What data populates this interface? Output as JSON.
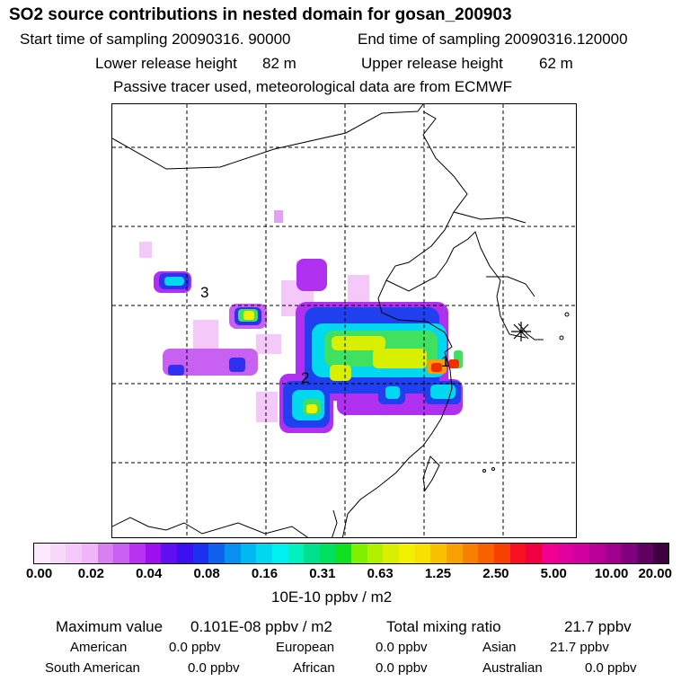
{
  "header": {
    "title": "SO2 source contributions in nested domain for gosan_200903",
    "start_label": "Start time of sampling 20090316. 90000",
    "end_label": "End time of sampling 20090316.120000",
    "lower_label": "Lower release height",
    "lower_value": "82 m",
    "upper_label": "Upper release height",
    "upper_value": "62 m",
    "note": "Passive tracer used, meteorological data are from ECMWF"
  },
  "map": {
    "region_labels": [
      "1",
      "2",
      "3"
    ],
    "receptor_marker": "asterisk-icon",
    "plume_colors": {
      "light_pink": "#f4c8f8",
      "violet": "#b030f0",
      "blue": "#3030f0",
      "cyan": "#00d8f0",
      "green": "#40e060",
      "yellow": "#f0f000",
      "red": "#f03000"
    }
  },
  "colorbar": {
    "colors": [
      "#fce8fc",
      "#f8d8fa",
      "#f4c8f8",
      "#eeb6f6",
      "#d880f2",
      "#c860f2",
      "#b830f0",
      "#9c10f0",
      "#6010f0",
      "#3a10f0",
      "#1c30f0",
      "#1060f0",
      "#0890f0",
      "#00b8f0",
      "#00d8f0",
      "#00f0f0",
      "#00f0c0",
      "#00e090",
      "#00e060",
      "#10e020",
      "#80f000",
      "#b0f000",
      "#d8f000",
      "#f0f000",
      "#f8e000",
      "#f8c000",
      "#f8a000",
      "#f88000",
      "#f86000",
      "#f84000",
      "#f81020",
      "#f00040",
      "#f00090",
      "#e000a0",
      "#d000a0",
      "#b80098",
      "#a00090",
      "#800080",
      "#600060",
      "#400040"
    ],
    "ticks": [
      "0.00",
      "0.02",
      "0.04",
      "0.08",
      "0.16",
      "0.31",
      "0.63",
      "1.25",
      "2.50",
      "5.00",
      "10.00",
      "20.00"
    ],
    "unit": "10E-10 ppbv / m2"
  },
  "stats": {
    "max_label": "Maximum value",
    "max_value": "0.101E-08 ppbv / m2",
    "total_label": "Total mixing ratio",
    "total_value": "21.7 ppbv",
    "regions": [
      {
        "name": "American",
        "value": "0.0 ppbv"
      },
      {
        "name": "European",
        "value": "0.0 ppbv"
      },
      {
        "name": "Asian",
        "value": "21.7 ppbv"
      },
      {
        "name": "South American",
        "value": "0.0 ppbv"
      },
      {
        "name": "African",
        "value": "0.0 ppbv"
      },
      {
        "name": "Australian",
        "value": "0.0 ppbv"
      }
    ]
  }
}
